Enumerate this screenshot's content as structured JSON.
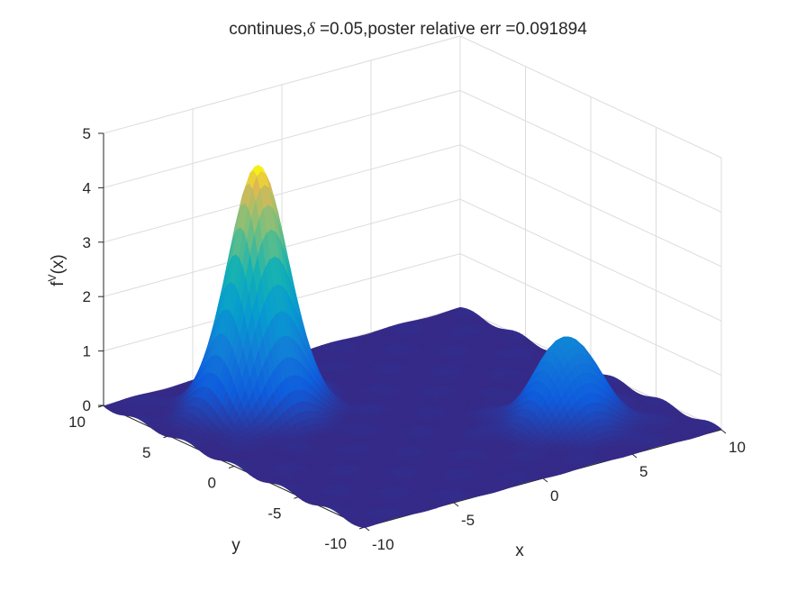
{
  "chart_data": {
    "type": "surface",
    "title_prefix": "continues,",
    "title_symbol": "δ",
    "title_suffix": " =0.05,poster relative err =0.091894",
    "xlabel": "x",
    "ylabel": "y",
    "zlabel_base": "f",
    "zlabel_sup": "V",
    "zlabel_tail": "(x)",
    "xlim": [
      -10,
      10
    ],
    "ylim": [
      -10,
      10
    ],
    "zlim": [
      0,
      5
    ],
    "xticks": [
      "-10",
      "-5",
      "0",
      "5",
      "10"
    ],
    "yticks": [
      "-10",
      "-5",
      "0",
      "5",
      "10"
    ],
    "zticks": [
      "0",
      "1",
      "2",
      "3",
      "4",
      "5"
    ],
    "grid": true,
    "colormap": "parula",
    "peaks": [
      {
        "x": -5,
        "y": 5,
        "height": 4.5,
        "sigma": 1.4
      },
      {
        "x": 5,
        "y": -5,
        "height": 1.6,
        "sigma": 1.4
      }
    ]
  }
}
